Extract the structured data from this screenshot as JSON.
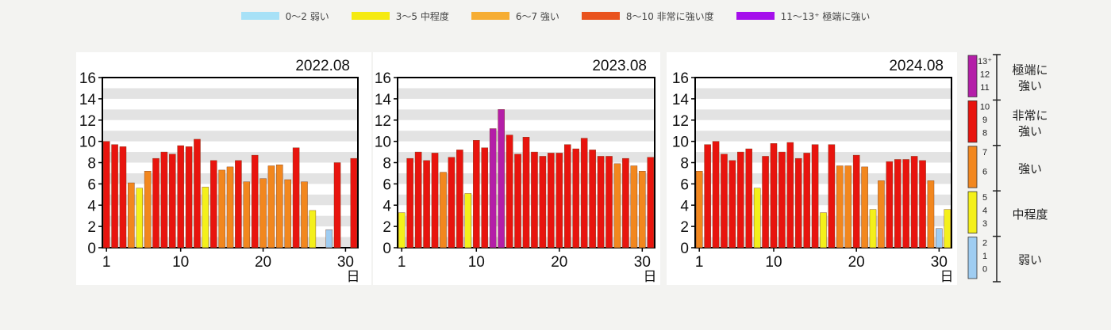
{
  "legend": {
    "items": [
      {
        "label": "0～2 弱い",
        "color": "#a7e1f7"
      },
      {
        "label": "3～5 中程度",
        "color": "#f5ea11"
      },
      {
        "label": "6～7 強い",
        "color": "#f6ad33"
      },
      {
        "label": "8～10 非常に強い度",
        "color": "#e9531e"
      },
      {
        "label": "11～13⁺ 極端に強い",
        "color": "#a50fec"
      }
    ]
  },
  "colors": {
    "weak": "#9fcdf2",
    "moderate": "#f4f01a",
    "strong": "#f2871e",
    "very_strong": "#e8140e",
    "extreme": "#b41ea8"
  },
  "scale_key": {
    "groups": [
      {
        "label_lines": [
          "極端に",
          "強い"
        ],
        "values": [
          "13⁺",
          "12",
          "11"
        ],
        "color": "#b41ea8"
      },
      {
        "label_lines": [
          "非常に",
          "強い"
        ],
        "values": [
          "10",
          "9",
          "8"
        ],
        "color": "#e8140e"
      },
      {
        "label_lines": [
          "強い"
        ],
        "values": [
          "7",
          "6"
        ],
        "color": "#f2871e"
      },
      {
        "label_lines": [
          "中程度"
        ],
        "values": [
          "5",
          "4",
          "3"
        ],
        "color": "#f4f01a"
      },
      {
        "label_lines": [
          "弱い"
        ],
        "values": [
          "2",
          "1",
          "0"
        ],
        "color": "#9fcdf2"
      }
    ]
  },
  "chart_data": [
    {
      "type": "bar",
      "title": "2022.08",
      "xlabel": "日",
      "ylim": [
        0,
        16
      ],
      "yticks": [
        "0",
        "2",
        "4",
        "6",
        "8",
        "10",
        "12",
        "14",
        "16"
      ],
      "xticks": [
        "1",
        "10",
        "20",
        "30"
      ],
      "grid": "horizontal bands",
      "x": [
        1,
        2,
        3,
        4,
        5,
        6,
        7,
        8,
        9,
        10,
        11,
        12,
        13,
        14,
        15,
        16,
        17,
        18,
        19,
        20,
        21,
        22,
        23,
        24,
        25,
        26,
        27,
        28,
        29,
        30,
        31
      ],
      "values": [
        10,
        9.7,
        9.5,
        6.1,
        5.6,
        7.2,
        8.4,
        9,
        8.8,
        9.6,
        9.5,
        10.2,
        5.7,
        8.2,
        7.3,
        7.6,
        8.2,
        6.2,
        8.7,
        6.5,
        7.7,
        7.8,
        6.4,
        9.4,
        6.2,
        3.5,
        null,
        1.7,
        8,
        null,
        8.4
      ]
    },
    {
      "type": "bar",
      "title": "2023.08",
      "xlabel": "日",
      "ylim": [
        0,
        16
      ],
      "yticks": [
        "0",
        "2",
        "4",
        "6",
        "8",
        "10",
        "12",
        "14",
        "16"
      ],
      "xticks": [
        "1",
        "10",
        "20",
        "30"
      ],
      "grid": "horizontal bands",
      "x": [
        1,
        2,
        3,
        4,
        5,
        6,
        7,
        8,
        9,
        10,
        11,
        12,
        13,
        14,
        15,
        16,
        17,
        18,
        19,
        20,
        21,
        22,
        23,
        24,
        25,
        26,
        27,
        28,
        29,
        30,
        31
      ],
      "values": [
        3.3,
        8.4,
        9,
        8.2,
        8.9,
        7.1,
        8.5,
        9.2,
        5.1,
        10.1,
        9.4,
        11.2,
        13,
        10.6,
        8.8,
        10.4,
        9,
        8.6,
        8.9,
        8.9,
        9.7,
        9.3,
        10.3,
        9.2,
        8.6,
        8.6,
        7.9,
        8.4,
        7.7,
        7.2,
        8.5
      ]
    },
    {
      "type": "bar",
      "title": "2024.08",
      "xlabel": "日",
      "ylim": [
        0,
        16
      ],
      "yticks": [
        "0",
        "2",
        "4",
        "6",
        "8",
        "10",
        "12",
        "14",
        "16"
      ],
      "xticks": [
        "1",
        "10",
        "20",
        "30"
      ],
      "grid": "horizontal bands",
      "x": [
        1,
        2,
        3,
        4,
        5,
        6,
        7,
        8,
        9,
        10,
        11,
        12,
        13,
        14,
        15,
        16,
        17,
        18,
        19,
        20,
        21,
        22,
        23,
        24,
        25,
        26,
        27,
        28,
        29,
        30,
        31
      ],
      "values": [
        7.2,
        9.7,
        10,
        8.8,
        8.2,
        9,
        9.3,
        5.6,
        8.6,
        9.8,
        9,
        9.9,
        8.4,
        8.9,
        9.7,
        3.3,
        9.7,
        7.7,
        7.7,
        8.7,
        7.6,
        3.6,
        6.3,
        8.1,
        8.3,
        8.3,
        8.6,
        8.2,
        6.3,
        1.8,
        3.6
      ]
    }
  ]
}
